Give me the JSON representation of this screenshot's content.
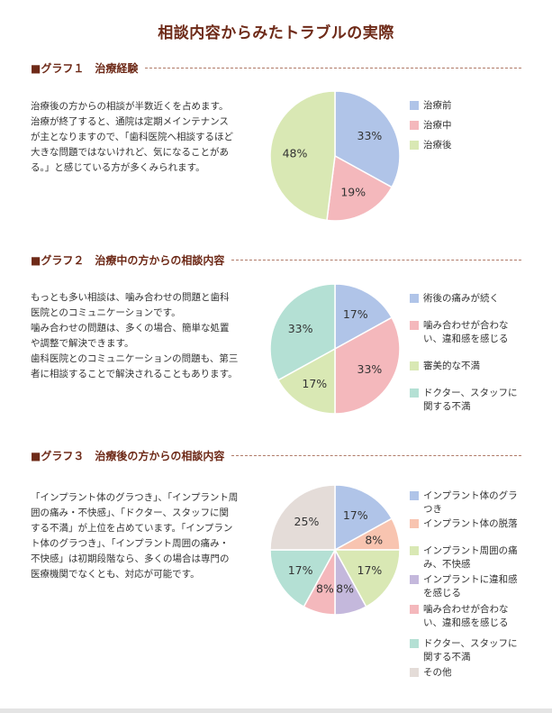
{
  "page": {
    "title": "相談内容からみたトラブルの実際"
  },
  "sections": [
    {
      "heading": "■グラフ１　治療経験",
      "description": [
        "治療後の方からの相談が半数近くを占めます。",
        "治療が終了すると、通院は定期メインテナンス",
        "が主となりますので、「歯科医院へ相談するほど",
        "大きな問題ではないけれど、気になることがあ",
        "る。」と感じている方が多くみられます。"
      ]
    },
    {
      "heading": "■グラフ２　治療中の方からの相談内容",
      "description": [
        "もっとも多い相談は、噛み合わせの問題と歯科",
        "医院とのコミュニケーションです。",
        "噛み合わせの問題は、多くの場合、簡単な処置",
        "や調整で解決できます。",
        "歯科医院とのコミュニケーションの問題も、第三",
        "者に相談することで解決されることもあります。"
      ]
    },
    {
      "heading": "■グラフ３　治療後の方からの相談内容",
      "description": [
        "「インプラント体のグラつき」、「インプラント周",
        "囲の痛み・不快感」、「ドクター、スタッフに関",
        "する不満」が上位を占めています。「インプラン",
        "ト体のグラつき」、「インプラント周囲の痛み・",
        "不快感」は初期段階なら、多くの場合は専門の",
        "医療機関でなくとも、対応が可能です。"
      ]
    }
  ],
  "chart_data": [
    {
      "type": "pie",
      "title": "治療経験",
      "categories": [
        "治療前",
        "治療中",
        "治療後"
      ],
      "values": [
        33,
        19,
        48
      ],
      "labels": [
        "33%",
        "19%",
        "48%"
      ],
      "colors": [
        "#b0c4e8",
        "#f4b8bc",
        "#d9e8b4"
      ],
      "legend_lines": [
        [
          "治療前"
        ],
        [
          "治療中"
        ],
        [
          "治療後"
        ]
      ],
      "legend_placement": "right"
    },
    {
      "type": "pie",
      "title": "治療中の方からの相談内容",
      "categories": [
        "術後の痛みが続く",
        "噛み合わせが合わない、違和感を感じる",
        "審美的な不満",
        "ドクター、スタッフに関する不満"
      ],
      "values": [
        17,
        33,
        17,
        33
      ],
      "labels": [
        "17%",
        "33%",
        "17%",
        "33%"
      ],
      "colors": [
        "#b0c4e8",
        "#f4b8bc",
        "#d9e8b4",
        "#b4e0d4"
      ],
      "legend_lines": [
        [
          "術後の痛みが続く"
        ],
        [
          "噛み合わせが合わな",
          "い、違和感を感じる"
        ],
        [
          "審美的な不満"
        ],
        [
          "ドクター、スタッフに",
          "関する不満"
        ]
      ],
      "legend_placement": "right"
    },
    {
      "type": "pie",
      "title": "治療後の方からの相談内容",
      "categories": [
        "インプラント体のグラつき",
        "インプラント体の脱落",
        "インプラント周囲の痛み、不快感",
        "インプラントに違和感を感じる",
        "噛み合わせが合わない、違和感を感じる",
        "ドクター、スタッフに関する不満",
        "その他"
      ],
      "values": [
        17,
        8,
        17,
        8,
        8,
        17,
        25
      ],
      "labels": [
        "17%",
        "8%",
        "17%",
        "8%",
        "8%",
        "17%",
        "25%"
      ],
      "colors": [
        "#b0c4e8",
        "#f8c4b0",
        "#d9e8b4",
        "#c4b8dc",
        "#f4b8bc",
        "#b4e0d4",
        "#e4dcd8"
      ],
      "legend_lines": [
        [
          "インプラント体のグラ",
          "つき"
        ],
        [
          "インプラント体の脱落"
        ],
        [
          "インプラント周囲の痛",
          "み、不快感"
        ],
        [
          "インプラントに違和感",
          "を感じる"
        ],
        [
          "噛み合わせが合わな",
          "い、違和感を感じる"
        ],
        [
          "ドクター、スタッフに",
          "関する不満"
        ],
        [
          "その他"
        ]
      ],
      "legend_placement": "right"
    }
  ]
}
